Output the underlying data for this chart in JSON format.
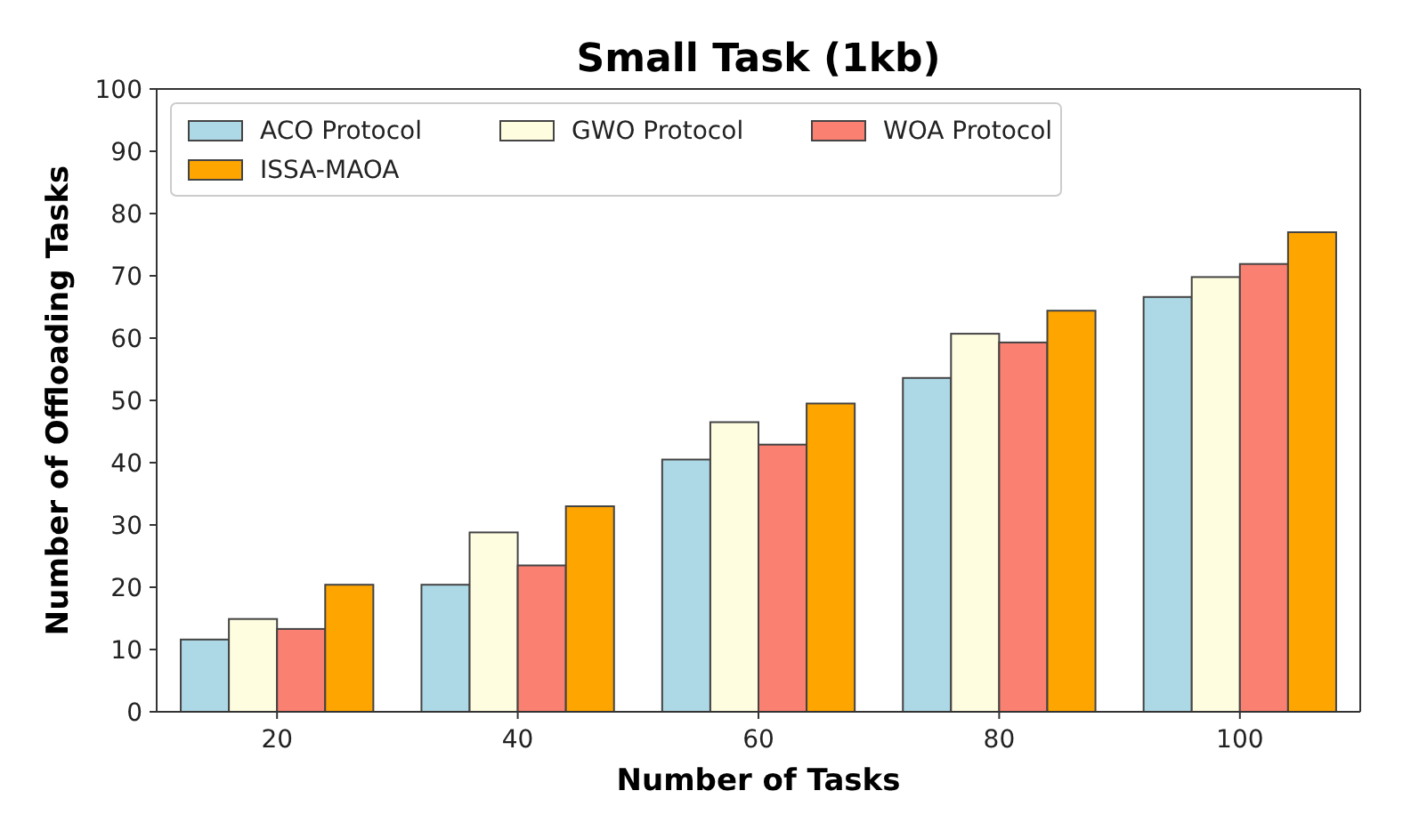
{
  "chart_data": {
    "type": "bar",
    "title": "Small Task (1kb)",
    "xlabel": "Number of Tasks",
    "ylabel": "Number of Offloading Tasks",
    "categories": [
      "20",
      "40",
      "60",
      "80",
      "100"
    ],
    "series": [
      {
        "name": "ACO Protocol",
        "color": "#add8e6",
        "values": [
          11.6,
          20.4,
          40.5,
          53.6,
          66.6
        ]
      },
      {
        "name": "GWO Protocol",
        "color": "#fffde0",
        "values": [
          14.9,
          28.8,
          46.5,
          60.7,
          69.8
        ]
      },
      {
        "name": "WOA Protocol",
        "color": "#fa8072",
        "values": [
          13.3,
          23.5,
          42.9,
          59.3,
          71.9
        ]
      },
      {
        "name": "ISSA-MAOA",
        "color": "#ffa500",
        "values": [
          20.4,
          33,
          49.5,
          64.4,
          77
        ]
      }
    ],
    "ylim": [
      0,
      100
    ],
    "yticks": [
      0,
      10,
      20,
      30,
      40,
      50,
      60,
      70,
      80,
      90,
      100
    ],
    "grid": false,
    "legend": "top left"
  }
}
